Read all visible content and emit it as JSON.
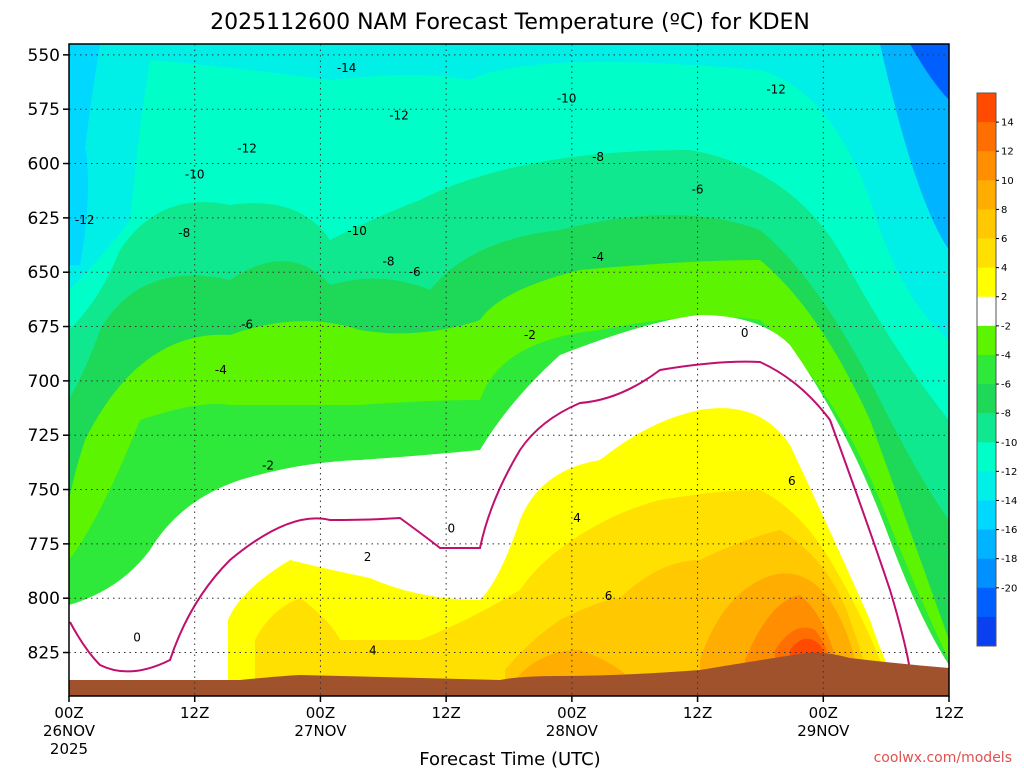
{
  "chart_data": {
    "type": "heatmap",
    "title": "2025112600 NAM Forecast Temperature (ºC) for KDEN",
    "xlabel": "Forecast Time (UTC)",
    "ylabel": "",
    "credit": "coolwx.com/models",
    "y_axis": {
      "range": [
        545,
        845
      ],
      "ticks": [
        550,
        575,
        600,
        625,
        650,
        675,
        700,
        725,
        750,
        775,
        800,
        825
      ],
      "tick_labels": [
        "550",
        "575",
        "600",
        "625",
        "650",
        "675",
        "700",
        "725",
        "750",
        "775",
        "800",
        "825"
      ]
    },
    "x_axis": {
      "range_hours": [
        0,
        84
      ],
      "ticks": [
        {
          "hour": 0,
          "label": "00Z",
          "sub": "26NOV",
          "sub2": "2025"
        },
        {
          "hour": 12,
          "label": "12Z",
          "sub": "",
          "sub2": ""
        },
        {
          "hour": 24,
          "label": "00Z",
          "sub": "27NOV",
          "sub2": ""
        },
        {
          "hour": 36,
          "label": "12Z",
          "sub": "",
          "sub2": ""
        },
        {
          "hour": 48,
          "label": "00Z",
          "sub": "28NOV",
          "sub2": ""
        },
        {
          "hour": 60,
          "label": "12Z",
          "sub": "",
          "sub2": ""
        },
        {
          "hour": 72,
          "label": "00Z",
          "sub": "29NOV",
          "sub2": ""
        },
        {
          "hour": 84,
          "label": "12Z",
          "sub": "",
          "sub2": ""
        }
      ]
    },
    "grid": true,
    "legend": "colorbar-right",
    "colorbar": {
      "levels": [
        16,
        14,
        12,
        10,
        8,
        6,
        4,
        2,
        0,
        -2,
        -4,
        -6,
        -8,
        -10,
        -12,
        -14,
        -16,
        -18,
        -20,
        -22
      ],
      "labels": [
        "14",
        "12",
        "10",
        "8",
        "6",
        "4",
        "2",
        "-2",
        "-4",
        "-6",
        "-8",
        "-10",
        "-12",
        "-14",
        "-16",
        "-18",
        "-20"
      ],
      "colors": [
        "#ff4a00",
        "#ff6e00",
        "#ff8f00",
        "#ffad00",
        "#ffc800",
        "#ffe000",
        "#ffff00",
        "#ffffff",
        "#5cf400",
        "#2ee83a",
        "#1ed858",
        "#10e890",
        "#00ffc8",
        "#00f0e8",
        "#00d8ff",
        "#00b4ff",
        "#0090ff",
        "#0060ff",
        "#0a40f0"
      ]
    },
    "contour_labels": [
      {
        "text": "-14",
        "h": 26.5,
        "p": 556
      },
      {
        "text": "-12",
        "h": 17.0,
        "p": 593
      },
      {
        "text": "-12",
        "h": 1.5,
        "p": 626
      },
      {
        "text": "-12",
        "h": 31.5,
        "p": 578
      },
      {
        "text": "-12",
        "h": 67.5,
        "p": 566
      },
      {
        "text": "-10",
        "h": 12.0,
        "p": 605
      },
      {
        "text": "-10",
        "h": 27.5,
        "p": 631
      },
      {
        "text": "-10",
        "h": 47.5,
        "p": 570
      },
      {
        "text": "-8",
        "h": 11.0,
        "p": 632
      },
      {
        "text": "-8",
        "h": 30.5,
        "p": 645
      },
      {
        "text": "-8",
        "h": 50.5,
        "p": 597
      },
      {
        "text": "-6",
        "h": 17.0,
        "p": 674
      },
      {
        "text": "-6",
        "h": 33.0,
        "p": 650
      },
      {
        "text": "-6",
        "h": 60.0,
        "p": 612
      },
      {
        "text": "-4",
        "h": 14.5,
        "p": 695
      },
      {
        "text": "-4",
        "h": 50.5,
        "p": 643
      },
      {
        "text": "-2",
        "h": 19.0,
        "p": 739
      },
      {
        "text": "-2",
        "h": 44.0,
        "p": 679
      },
      {
        "text": "0",
        "h": 6.5,
        "p": 818
      },
      {
        "text": "0",
        "h": 36.5,
        "p": 768
      },
      {
        "text": "0",
        "h": 64.5,
        "p": 678
      },
      {
        "text": "2",
        "h": 28.5,
        "p": 781
      },
      {
        "text": "4",
        "h": 29.0,
        "p": 824
      },
      {
        "text": "4",
        "h": 48.5,
        "p": 763
      },
      {
        "text": "6",
        "h": 51.5,
        "p": 799
      },
      {
        "text": "6",
        "h": 69.0,
        "p": 746
      }
    ]
  }
}
